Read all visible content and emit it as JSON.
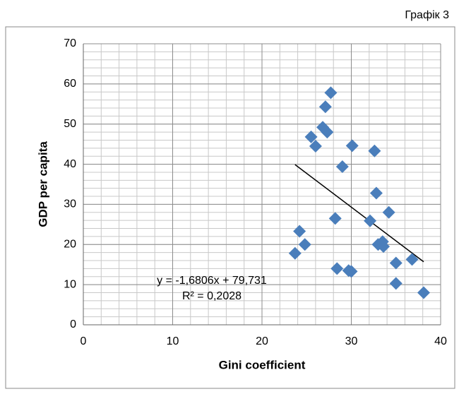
{
  "chart_data": {
    "type": "scatter",
    "caption": "Графік 3",
    "x_label": "Gini coefficient",
    "y_label": "GDP per capita",
    "x": [
      23.7,
      24.2,
      24.8,
      25.5,
      26.0,
      26.8,
      27.1,
      27.3,
      27.7,
      28.2,
      28.4,
      29.0,
      29.7,
      30.0,
      30.1,
      32.1,
      32.6,
      32.8,
      33.0,
      33.5,
      33.6,
      34.2,
      35.0,
      35.0,
      36.8,
      38.1
    ],
    "values": [
      17.8,
      23.3,
      20.0,
      46.8,
      44.5,
      49.2,
      54.3,
      48.0,
      57.8,
      26.5,
      14.0,
      39.4,
      13.5,
      13.3,
      44.6,
      25.9,
      43.3,
      32.8,
      20.0,
      20.7,
      19.5,
      28.0,
      15.4,
      10.3,
      16.3,
      8.0
    ],
    "color": "#4a7ebb",
    "xlim": [
      0,
      40
    ],
    "xticks": [
      0,
      10,
      20,
      30,
      40
    ],
    "ylim": [
      0,
      70
    ],
    "yticks": [
      0,
      10,
      20,
      30,
      40,
      50,
      60,
      70
    ],
    "grid": true,
    "x_minor_step": 2,
    "y_minor_step": 2,
    "trendline": {
      "slope": -1.6806,
      "intercept": 79.731,
      "x_range": [
        23.7,
        38.1
      ],
      "label": "y = -1,6806x + 79,731",
      "r2_label": "R² = 0,2028"
    }
  }
}
